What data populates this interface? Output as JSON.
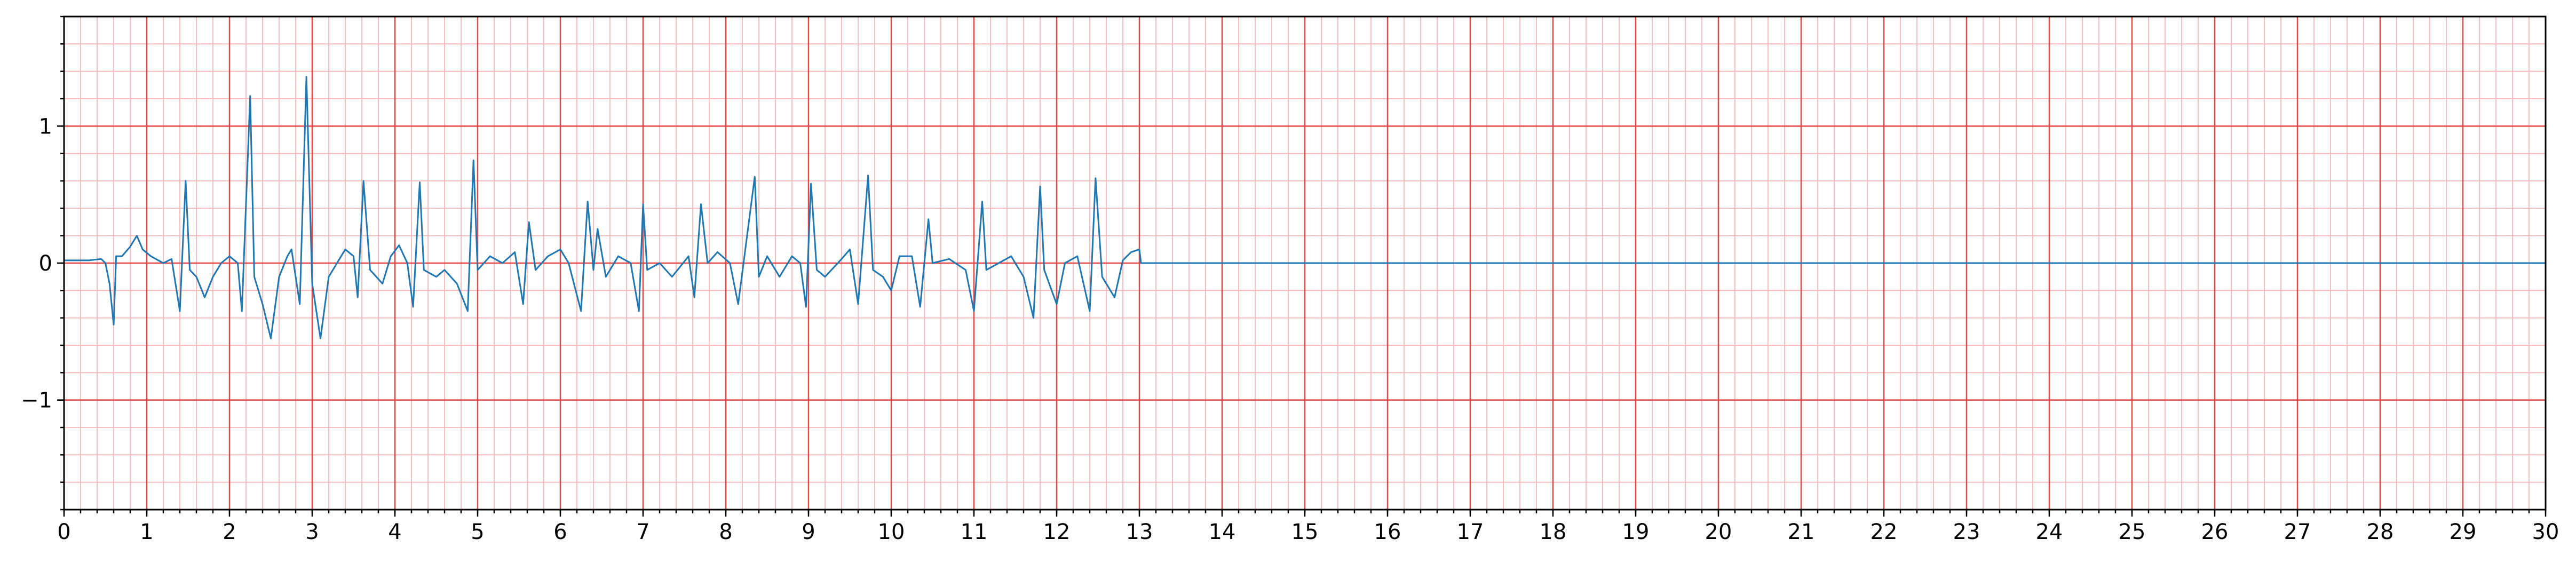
{
  "chart_data": {
    "type": "line",
    "x": [
      0,
      0.3,
      0.45,
      0.5,
      0.55,
      0.6,
      0.63,
      0.7,
      0.8,
      0.88,
      0.95,
      1.05,
      1.2,
      1.3,
      1.4,
      1.47,
      1.52,
      1.6,
      1.7,
      1.8,
      1.9,
      2.0,
      2.1,
      2.15,
      2.25,
      2.3,
      2.4,
      2.5,
      2.6,
      2.7,
      2.75,
      2.85,
      2.93,
      3.0,
      3.1,
      3.2,
      3.3,
      3.4,
      3.5,
      3.55,
      3.62,
      3.7,
      3.85,
      3.95,
      4.05,
      4.15,
      4.22,
      4.3,
      4.35,
      4.5,
      4.6,
      4.75,
      4.88,
      4.95,
      5.0,
      5.15,
      5.3,
      5.45,
      5.55,
      5.62,
      5.7,
      5.85,
      6.0,
      6.1,
      6.25,
      6.33,
      6.4,
      6.45,
      6.55,
      6.7,
      6.85,
      6.95,
      7.0,
      7.05,
      7.2,
      7.35,
      7.55,
      7.62,
      7.7,
      7.78,
      7.9,
      8.05,
      8.15,
      8.35,
      8.4,
      8.5,
      8.65,
      8.8,
      8.9,
      8.97,
      9.03,
      9.1,
      9.2,
      9.4,
      9.5,
      9.6,
      9.72,
      9.78,
      9.9,
      10.0,
      10.1,
      10.25,
      10.35,
      10.45,
      10.5,
      10.7,
      10.9,
      11.0,
      11.1,
      11.15,
      11.3,
      11.45,
      11.6,
      11.72,
      11.8,
      11.85,
      12.0,
      12.1,
      12.25,
      12.4,
      12.47,
      12.55,
      12.7,
      12.8,
      12.9,
      13.0,
      13.02,
      30
    ],
    "series": [
      {
        "color": "#1f77b4",
        "values": [
          0.02,
          0.02,
          0.03,
          0.0,
          -0.15,
          -0.45,
          0.05,
          0.05,
          0.12,
          0.2,
          0.1,
          0.05,
          0.0,
          0.03,
          -0.35,
          0.6,
          -0.05,
          -0.1,
          -0.25,
          -0.1,
          0.0,
          0.05,
          0.0,
          -0.35,
          1.22,
          -0.1,
          -0.3,
          -0.55,
          -0.1,
          0.05,
          0.1,
          -0.3,
          1.36,
          -0.15,
          -0.55,
          -0.1,
          0.0,
          0.1,
          0.05,
          -0.25,
          0.6,
          -0.05,
          -0.15,
          0.05,
          0.13,
          0.0,
          -0.32,
          0.59,
          -0.05,
          -0.1,
          -0.05,
          -0.15,
          -0.35,
          0.75,
          -0.05,
          0.05,
          0.0,
          0.08,
          -0.3,
          0.3,
          -0.05,
          0.05,
          0.1,
          0.0,
          -0.35,
          0.45,
          -0.05,
          0.25,
          -0.1,
          0.05,
          0.0,
          -0.35,
          0.43,
          -0.05,
          0.0,
          -0.1,
          0.05,
          -0.25,
          0.43,
          0.0,
          0.08,
          0.0,
          -0.3,
          0.63,
          -0.1,
          0.05,
          -0.1,
          0.05,
          0.0,
          -0.32,
          0.58,
          -0.05,
          -0.1,
          0.03,
          0.1,
          -0.3,
          0.64,
          -0.05,
          -0.1,
          -0.2,
          0.05,
          0.05,
          -0.32,
          0.32,
          0.0,
          0.03,
          -0.05,
          -0.35,
          0.45,
          -0.05,
          0.0,
          0.05,
          -0.1,
          -0.4,
          0.56,
          -0.05,
          -0.3,
          0.0,
          0.05,
          -0.35,
          0.62,
          -0.1,
          -0.25,
          0.02,
          0.08,
          0.1,
          0.0,
          0.0
        ]
      }
    ],
    "xlim": [
      0,
      30
    ],
    "ylim": [
      -1.8,
      1.8
    ],
    "xticks": [
      0,
      1,
      2,
      3,
      4,
      5,
      6,
      7,
      8,
      9,
      10,
      11,
      12,
      13,
      14,
      15,
      16,
      17,
      18,
      19,
      20,
      21,
      22,
      23,
      24,
      25,
      26,
      27,
      28,
      29,
      30
    ],
    "yticks": [
      {
        "value": -1,
        "label": "−1"
      },
      0,
      1
    ],
    "grid": true,
    "major_grid_color": "#e64545",
    "minor_grid_color": "#f8b8b8"
  }
}
